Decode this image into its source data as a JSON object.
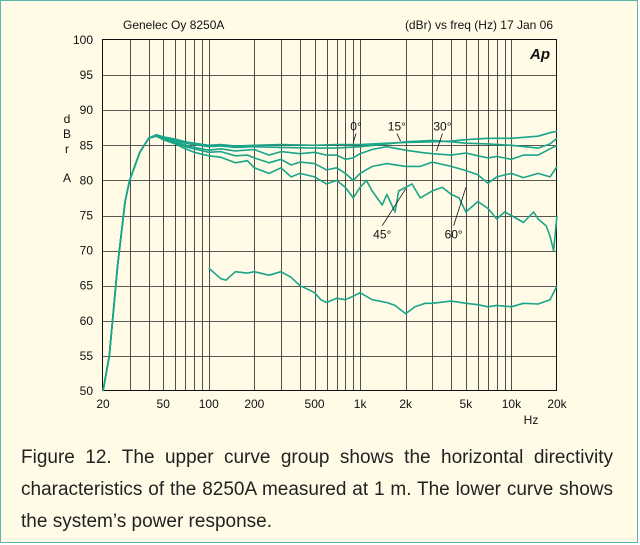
{
  "chart_data": {
    "type": "line",
    "header_left": "Genelec Oy 8250A",
    "header_right": "(dBr) vs freq (Hz) 17 Jan 06",
    "logo": "Ap",
    "ylabel_chars": [
      "d",
      "B",
      "r",
      "A"
    ],
    "xlabel": "Hz",
    "xscale": "log",
    "xlim": [
      20,
      20000
    ],
    "ylim": [
      50,
      100
    ],
    "y_ticks": [
      50,
      55,
      60,
      65,
      70,
      75,
      80,
      85,
      90,
      95,
      100
    ],
    "x_ticks": [
      {
        "v": 20,
        "label": "20"
      },
      {
        "v": 50,
        "label": "50"
      },
      {
        "v": 100,
        "label": "100"
      },
      {
        "v": 200,
        "label": "200"
      },
      {
        "v": 500,
        "label": "500"
      },
      {
        "v": 1000,
        "label": "1k"
      },
      {
        "v": 2000,
        "label": "2k"
      },
      {
        "v": 5000,
        "label": "5k"
      },
      {
        "v": 10000,
        "label": "10k"
      },
      {
        "v": 20000,
        "label": "20k"
      }
    ],
    "grid": true,
    "line_color": "#1aa58a",
    "series": [
      {
        "name": "0°",
        "points": [
          [
            20,
            50
          ],
          [
            22,
            55
          ],
          [
            25,
            68
          ],
          [
            28,
            77
          ],
          [
            30,
            80
          ],
          [
            35,
            84
          ],
          [
            40,
            86
          ],
          [
            45,
            86.5
          ],
          [
            50,
            86.2
          ],
          [
            60,
            85.9
          ],
          [
            70,
            85.5
          ],
          [
            80,
            85.3
          ],
          [
            100,
            85
          ],
          [
            120,
            85.1
          ],
          [
            150,
            84.9
          ],
          [
            200,
            85
          ],
          [
            300,
            85.1
          ],
          [
            500,
            85
          ],
          [
            700,
            85.1
          ],
          [
            1000,
            85.1
          ],
          [
            1500,
            85.3
          ],
          [
            2000,
            85.4
          ],
          [
            3000,
            85.5
          ],
          [
            4000,
            85.6
          ],
          [
            5000,
            85.8
          ],
          [
            7000,
            86
          ],
          [
            10000,
            86
          ],
          [
            15000,
            86.3
          ],
          [
            18000,
            86.8
          ],
          [
            20000,
            87
          ]
        ]
      },
      {
        "name": "15°",
        "points": [
          [
            20,
            50
          ],
          [
            22,
            55
          ],
          [
            25,
            68
          ],
          [
            28,
            77
          ],
          [
            30,
            80
          ],
          [
            35,
            84
          ],
          [
            40,
            86
          ],
          [
            45,
            86.5
          ],
          [
            50,
            86.2
          ],
          [
            60,
            85.8
          ],
          [
            70,
            85.3
          ],
          [
            80,
            85.1
          ],
          [
            100,
            84.8
          ],
          [
            120,
            84.9
          ],
          [
            150,
            84.7
          ],
          [
            200,
            84.8
          ],
          [
            300,
            84.7
          ],
          [
            500,
            84.6
          ],
          [
            700,
            84.6
          ],
          [
            1000,
            84.8
          ],
          [
            1500,
            85.2
          ],
          [
            2000,
            85.5
          ],
          [
            3000,
            85.7
          ],
          [
            4000,
            85.5
          ],
          [
            5000,
            85.3
          ],
          [
            7000,
            85.2
          ],
          [
            10000,
            85
          ],
          [
            15000,
            84.6
          ],
          [
            18000,
            85.2
          ],
          [
            20000,
            86
          ]
        ]
      },
      {
        "name": "30°",
        "points": [
          [
            20,
            50
          ],
          [
            22,
            55
          ],
          [
            25,
            68
          ],
          [
            28,
            77
          ],
          [
            30,
            80
          ],
          [
            35,
            84
          ],
          [
            40,
            86
          ],
          [
            45,
            86.5
          ],
          [
            50,
            86.1
          ],
          [
            60,
            85.6
          ],
          [
            70,
            85
          ],
          [
            80,
            84.7
          ],
          [
            100,
            84.3
          ],
          [
            120,
            84.5
          ],
          [
            150,
            84.2
          ],
          [
            200,
            84.4
          ],
          [
            250,
            83.6
          ],
          [
            300,
            84.1
          ],
          [
            400,
            83.8
          ],
          [
            500,
            84.0
          ],
          [
            600,
            83.6
          ],
          [
            700,
            83.6
          ],
          [
            800,
            83.0
          ],
          [
            900,
            83.2
          ],
          [
            1000,
            83.8
          ],
          [
            1200,
            84.4
          ],
          [
            1500,
            84.8
          ],
          [
            2000,
            84.3
          ],
          [
            2500,
            84.0
          ],
          [
            3000,
            83.8
          ],
          [
            4000,
            83.6
          ],
          [
            5000,
            83.9
          ],
          [
            6000,
            83.5
          ],
          [
            7000,
            83.2
          ],
          [
            8000,
            83.4
          ],
          [
            10000,
            83.0
          ],
          [
            12000,
            83.6
          ],
          [
            15000,
            83.6
          ],
          [
            18000,
            84.5
          ],
          [
            20000,
            85
          ]
        ]
      },
      {
        "name": "45°",
        "points": [
          [
            20,
            50
          ],
          [
            22,
            55
          ],
          [
            25,
            68
          ],
          [
            28,
            77
          ],
          [
            30,
            80
          ],
          [
            35,
            84
          ],
          [
            40,
            86
          ],
          [
            45,
            86.4
          ],
          [
            50,
            86
          ],
          [
            60,
            85.4
          ],
          [
            70,
            84.8
          ],
          [
            80,
            84.5
          ],
          [
            100,
            84
          ],
          [
            120,
            84.1
          ],
          [
            150,
            83.5
          ],
          [
            180,
            83.6
          ],
          [
            200,
            83.2
          ],
          [
            250,
            82.5
          ],
          [
            300,
            83.0
          ],
          [
            350,
            82.2
          ],
          [
            400,
            82.6
          ],
          [
            500,
            82.4
          ],
          [
            600,
            81.5
          ],
          [
            700,
            81.8
          ],
          [
            800,
            81.0
          ],
          [
            900,
            80.0
          ],
          [
            1000,
            81
          ],
          [
            1200,
            82.0
          ],
          [
            1500,
            82.4
          ],
          [
            2000,
            82.0
          ],
          [
            2500,
            82.0
          ],
          [
            3000,
            82.6
          ],
          [
            4000,
            82.0
          ],
          [
            5000,
            81.4
          ],
          [
            6000,
            80.8
          ],
          [
            7000,
            79.6
          ],
          [
            8000,
            80.5
          ],
          [
            10000,
            81.0
          ],
          [
            12000,
            80.4
          ],
          [
            15000,
            81.0
          ],
          [
            18000,
            80.5
          ],
          [
            20000,
            82
          ]
        ]
      },
      {
        "name": "60°",
        "points": [
          [
            20,
            50
          ],
          [
            22,
            55
          ],
          [
            25,
            68
          ],
          [
            28,
            77
          ],
          [
            30,
            80
          ],
          [
            35,
            84
          ],
          [
            40,
            86
          ],
          [
            45,
            86.3
          ],
          [
            50,
            85.8
          ],
          [
            60,
            85.2
          ],
          [
            70,
            84.5
          ],
          [
            80,
            84.0
          ],
          [
            100,
            83.5
          ],
          [
            120,
            83.3
          ],
          [
            150,
            82.5
          ],
          [
            180,
            82.8
          ],
          [
            200,
            81.8
          ],
          [
            250,
            81.0
          ],
          [
            300,
            81.8
          ],
          [
            350,
            80.5
          ],
          [
            400,
            81.0
          ],
          [
            500,
            80.5
          ],
          [
            600,
            79.5
          ],
          [
            700,
            80.0
          ],
          [
            800,
            79.0
          ],
          [
            900,
            77.5
          ],
          [
            1000,
            79
          ],
          [
            1100,
            80
          ],
          [
            1200,
            78.5
          ],
          [
            1400,
            76.5
          ],
          [
            1500,
            78
          ],
          [
            1700,
            75.5
          ],
          [
            1800,
            78.5
          ],
          [
            2000,
            79
          ],
          [
            2200,
            79.5
          ],
          [
            2500,
            77.5
          ],
          [
            3000,
            78.5
          ],
          [
            3500,
            79.0
          ],
          [
            4000,
            78.0
          ],
          [
            4500,
            77.5
          ],
          [
            5000,
            75.5
          ],
          [
            6000,
            77.0
          ],
          [
            7000,
            76.0
          ],
          [
            8000,
            74.5
          ],
          [
            9000,
            75.5
          ],
          [
            10000,
            75
          ],
          [
            12000,
            74.0
          ],
          [
            14000,
            75.5
          ],
          [
            15000,
            74.5
          ],
          [
            17000,
            73.5
          ],
          [
            18000,
            72
          ],
          [
            19000,
            70
          ],
          [
            20000,
            75
          ]
        ]
      },
      {
        "name": "",
        "points": [
          [
            100,
            67.5
          ],
          [
            120,
            66
          ],
          [
            130,
            65.8
          ],
          [
            150,
            67.0
          ],
          [
            180,
            66.8
          ],
          [
            200,
            67.0
          ],
          [
            250,
            66.5
          ],
          [
            300,
            67.0
          ],
          [
            350,
            66.2
          ],
          [
            400,
            65.0
          ],
          [
            450,
            64.5
          ],
          [
            500,
            64.0
          ],
          [
            550,
            63.0
          ],
          [
            600,
            62.6
          ],
          [
            700,
            63.2
          ],
          [
            800,
            63.0
          ],
          [
            900,
            63.5
          ],
          [
            1000,
            64.0
          ],
          [
            1200,
            63.0
          ],
          [
            1500,
            62.6
          ],
          [
            1700,
            62.2
          ],
          [
            2000,
            61.0
          ],
          [
            2300,
            62.0
          ],
          [
            2700,
            62.5
          ],
          [
            3000,
            62.5
          ],
          [
            4000,
            62.8
          ],
          [
            5000,
            62.5
          ],
          [
            6000,
            62.3
          ],
          [
            7000,
            62.0
          ],
          [
            8000,
            62.2
          ],
          [
            10000,
            62.0
          ],
          [
            12000,
            62.5
          ],
          [
            15000,
            62.4
          ],
          [
            18000,
            63.0
          ],
          [
            20000,
            65
          ]
        ]
      }
    ],
    "annotations": [
      {
        "text": "0°",
        "x": 940,
        "y": 87.1,
        "target": [
          900,
          85.4
        ]
      },
      {
        "text": "15°",
        "x": 1750,
        "y": 87.1,
        "target": [
          1850,
          85.6
        ]
      },
      {
        "text": "30°",
        "x": 3500,
        "y": 87.1,
        "target": [
          3200,
          84.2
        ]
      },
      {
        "text": "45°",
        "x": 1400,
        "y": 71.7,
        "target": [
          2000,
          78.8
        ]
      },
      {
        "text": "60°",
        "x": 4150,
        "y": 71.7,
        "target": [
          5000,
          79.0
        ]
      }
    ]
  },
  "caption": "Figure 12. The upper curve group shows the horizontal directivity characteristics of the 8250A measured at 1 m. The lower curve shows the system’s power response."
}
